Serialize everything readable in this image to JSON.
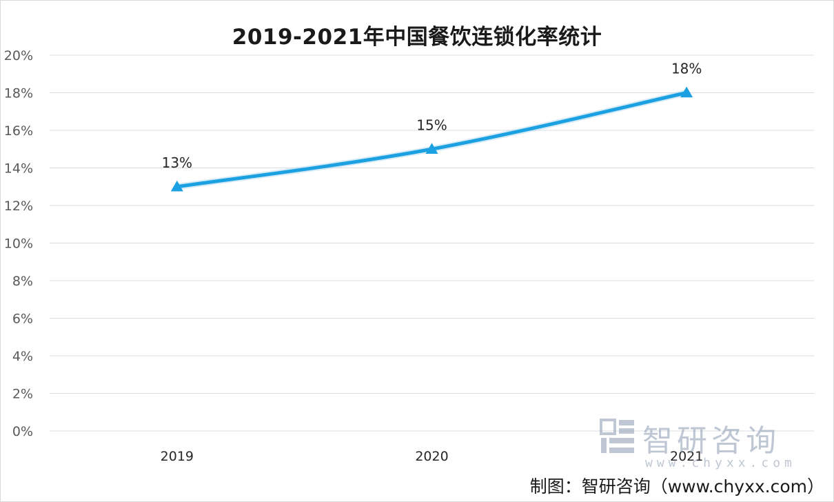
{
  "title": "2019-2021年中国餐饮连锁化率统计",
  "source_note": "制图：智研咨询（www.chyxx.com）",
  "watermark": {
    "name": "智研咨询",
    "url": "www.chyxx.com"
  },
  "colors": {
    "line": "#1ba1e2",
    "grid": "#d9dde3",
    "axis_text": "#595959",
    "label_text": "#262626"
  },
  "chart_data": {
    "type": "line",
    "title": "2019-2021年中国餐饮连锁化率统计",
    "xlabel": "",
    "ylabel": "",
    "categories": [
      "2019",
      "2020",
      "2021"
    ],
    "series": [
      {
        "values": [
          13,
          15,
          18
        ],
        "data_labels": [
          "13%",
          "15%",
          "18%"
        ],
        "marker": "triangle"
      }
    ],
    "ylim": [
      0,
      20
    ],
    "yticks": [
      0,
      2,
      4,
      6,
      8,
      10,
      12,
      14,
      16,
      18,
      20
    ],
    "ytick_labels": [
      "0%",
      "2%",
      "4%",
      "6%",
      "8%",
      "10%",
      "12%",
      "14%",
      "16%",
      "18%",
      "20%"
    ],
    "grid": true,
    "legend": "none"
  }
}
